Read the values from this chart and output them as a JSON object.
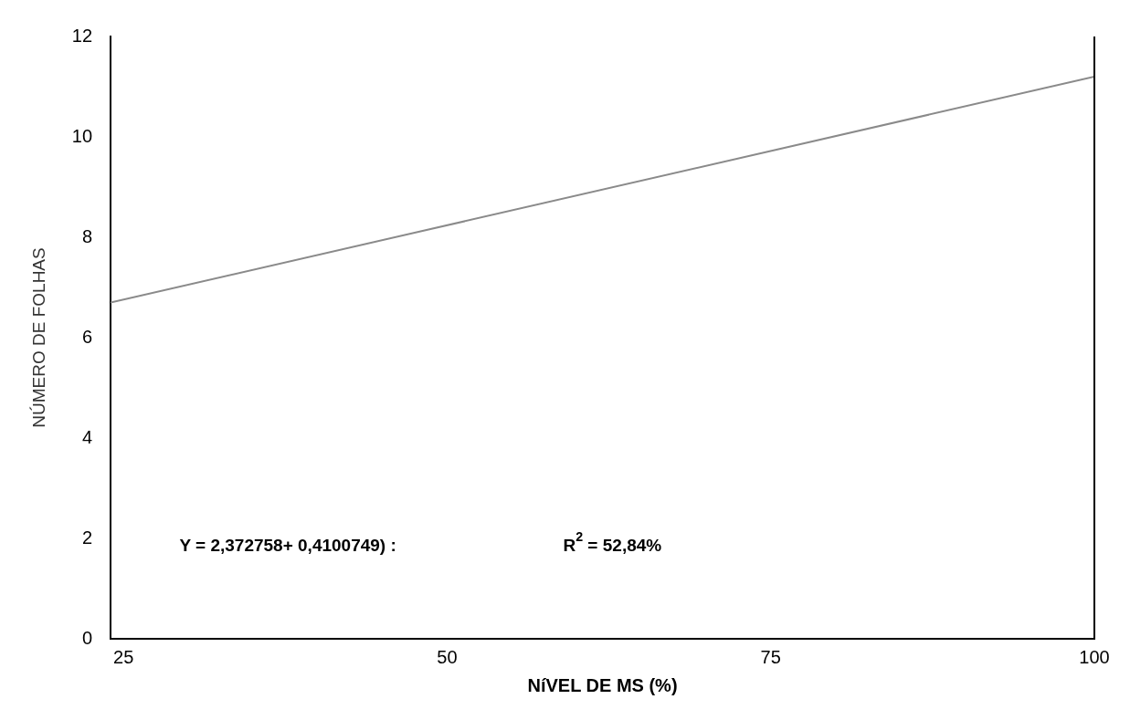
{
  "chart_data": {
    "type": "line",
    "xlabel": "NíVEL DE MS (%)",
    "ylabel": "NÚMERO DE FOLHAS",
    "x": [
      24,
      100
    ],
    "series": [
      {
        "color": "#8a8a8a",
        "values": [
          6.7,
          11.2
        ]
      }
    ],
    "xlim": [
      24,
      100
    ],
    "xticks": [
      25,
      50,
      75,
      100
    ],
    "ylim": [
      0,
      12
    ],
    "yticks": [
      0,
      2,
      4,
      6,
      8,
      10,
      12
    ],
    "grid": false,
    "legend": false,
    "marker": "none",
    "line_style": "solid",
    "annotations": [
      "Y = 2,372758+ 0,4100749) :",
      "R$^{2}$ = 52,84%"
    ]
  }
}
